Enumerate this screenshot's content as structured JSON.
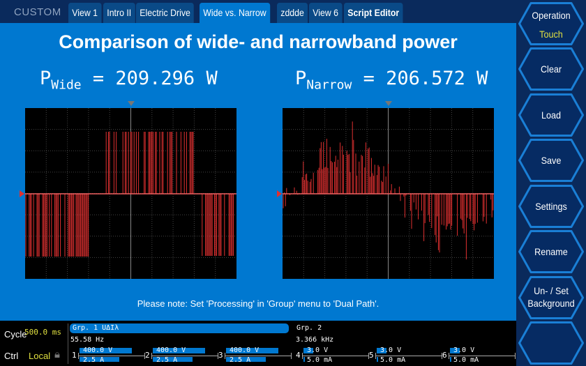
{
  "header": {
    "brand": "CUSTOM",
    "tabs": [
      {
        "label": "View 1"
      },
      {
        "label": "Intro II"
      },
      {
        "label": "Electric Drive"
      },
      {
        "label": "Wide vs. Narrow",
        "active": true
      },
      {
        "label": "zddde"
      },
      {
        "label": "View 6"
      },
      {
        "label": "Script Editor"
      }
    ]
  },
  "main": {
    "title": "Comparison of wide- and narrowband power",
    "wide": {
      "symbol": "P",
      "sub": "Wide",
      "value": "= 209.296 W"
    },
    "narrow": {
      "symbol": "P",
      "sub": "Narrow",
      "value": "= 206.572 W"
    },
    "note": "Please note: Set 'Processing' in 'Group' menu to 'Dual Path'.",
    "trace_color": "#e03030"
  },
  "status": {
    "cycle_label": "Cycle",
    "cycle_value": "500.0 ms",
    "ctrl_label": "Ctrl",
    "ctrl_value": "Local",
    "grp1": {
      "name": "Grp. 1 UΔIλ",
      "freq": "55.58  Hz",
      "channels": [
        {
          "n": "1",
          "v": "400.0 V",
          "i": "2.5 A"
        },
        {
          "n": "2",
          "v": "400.0 V",
          "i": "2.5 A"
        },
        {
          "n": "3",
          "v": "400.0 V",
          "i": "2.5 A"
        }
      ]
    },
    "grp2": {
      "name": "Grp. 2",
      "freq": "3.366 kHz",
      "channels": [
        {
          "n": "4",
          "v": "3.0 V",
          "i": "5.0 mA"
        },
        {
          "n": "5",
          "v": "3.0 V",
          "i": "5.0 mA"
        },
        {
          "n": "6",
          "v": "3.0 V",
          "i": "5.0 mA"
        }
      ]
    }
  },
  "sidebar": {
    "buttons": [
      {
        "label": "Operation",
        "sub": "Touch"
      },
      {
        "label": "Clear"
      },
      {
        "label": "Load"
      },
      {
        "label": "Save"
      },
      {
        "label": "Settings"
      },
      {
        "label": "Rename"
      },
      {
        "label": "Un- / Set",
        "label2": "Background"
      },
      {
        "label": ""
      }
    ]
  }
}
